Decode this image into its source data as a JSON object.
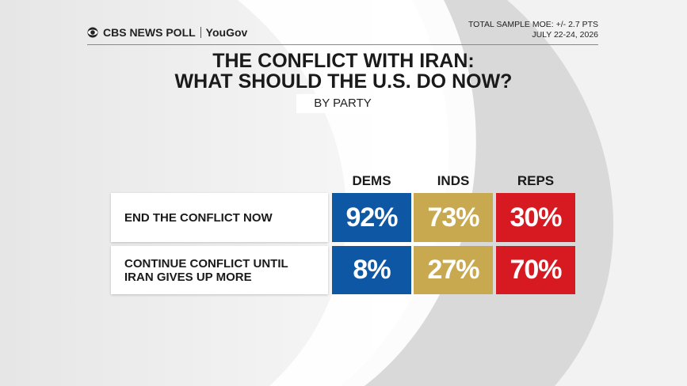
{
  "header": {
    "brand": "CBS NEWS POLL",
    "partner": "YouGov",
    "moe": "TOTAL SAMPLE MOE: +/- 2.7 PTS",
    "dates": "JULY 22-24, 2026"
  },
  "title": [
    "THE CONFLICT WITH IRAN:",
    "WHAT SHOULD THE U.S. DO NOW?"
  ],
  "subtitle": "BY PARTY",
  "table": {
    "columns": [
      "DEMS",
      "INDS",
      "REPS"
    ],
    "rows": [
      {
        "label": [
          "END THE CONFLICT NOW"
        ],
        "values": [
          "92%",
          "73%",
          "30%"
        ]
      },
      {
        "label": [
          "CONTINUE CONFLICT UNTIL",
          "IRAN GIVES UP MORE"
        ],
        "values": [
          "8%",
          "27%",
          "70%"
        ]
      }
    ]
  }
}
